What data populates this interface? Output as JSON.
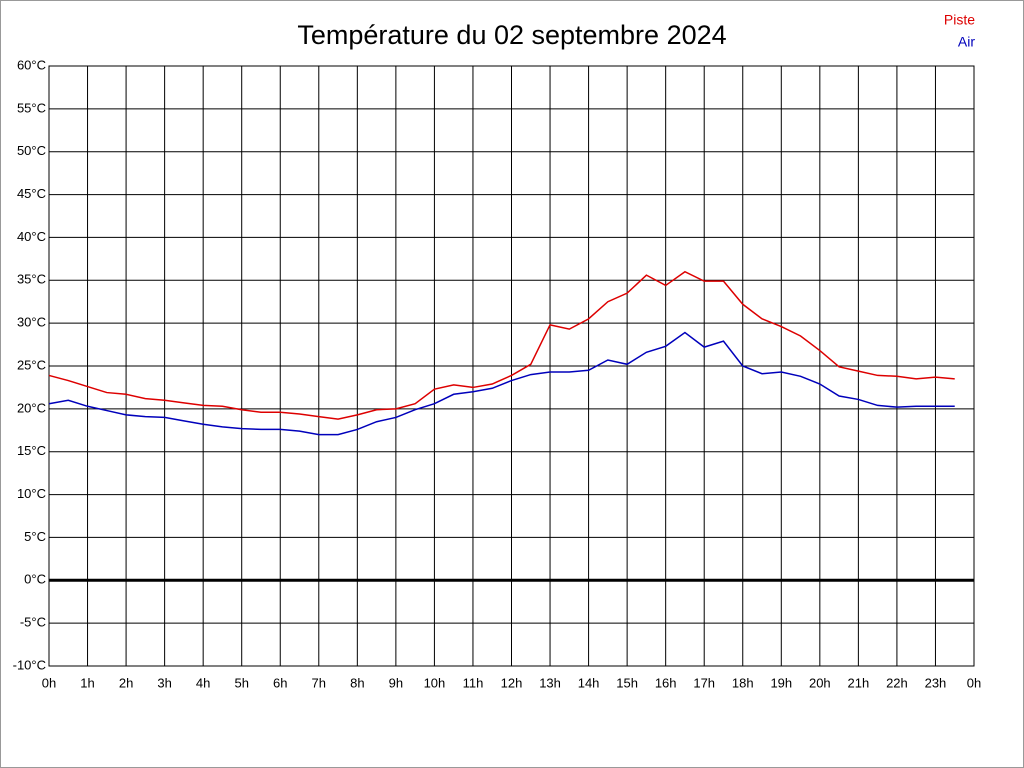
{
  "chart_data": {
    "type": "line",
    "title": "Température du 02 septembre 2024",
    "x": [
      0,
      0.5,
      1,
      1.5,
      2,
      2.5,
      3,
      3.5,
      4,
      4.5,
      5,
      5.5,
      6,
      6.5,
      7,
      7.5,
      8,
      8.5,
      9,
      9.5,
      10,
      10.5,
      11,
      11.5,
      12,
      12.5,
      13,
      13.5,
      14,
      14.5,
      15,
      15.5,
      16,
      16.5,
      17,
      17.5,
      18,
      18.5,
      19,
      19.5,
      20,
      20.5,
      21,
      21.5,
      22,
      22.5,
      23,
      23.5
    ],
    "series": [
      {
        "name": "Piste",
        "color": "#dd0000",
        "values": [
          23.9,
          23.3,
          22.6,
          21.9,
          21.7,
          21.2,
          21.0,
          20.7,
          20.4,
          20.3,
          19.9,
          19.6,
          19.6,
          19.4,
          19.1,
          18.8,
          19.3,
          19.9,
          20.0,
          20.6,
          22.3,
          22.8,
          22.5,
          22.9,
          23.9,
          25.2,
          29.8,
          29.3,
          30.5,
          32.5,
          33.5,
          35.6,
          34.4,
          36.0,
          34.9,
          34.9,
          32.2,
          30.5,
          29.6,
          28.5,
          26.8,
          24.9,
          24.4,
          23.9,
          23.8,
          23.5,
          23.7,
          23.5
        ]
      },
      {
        "name": "Air",
        "color": "#0000bb",
        "values": [
          20.6,
          21.0,
          20.3,
          19.8,
          19.3,
          19.1,
          19.0,
          18.6,
          18.2,
          17.9,
          17.7,
          17.6,
          17.6,
          17.4,
          17.0,
          17.0,
          17.6,
          18.5,
          19.0,
          19.9,
          20.6,
          21.7,
          22.0,
          22.4,
          23.3,
          24.0,
          24.3,
          24.3,
          24.5,
          25.7,
          25.2,
          26.6,
          27.3,
          28.9,
          27.2,
          27.9,
          25.0,
          24.1,
          24.3,
          23.8,
          22.9,
          21.5,
          21.1,
          20.4,
          20.2,
          20.3,
          20.3,
          20.3
        ]
      }
    ],
    "xlim": [
      0,
      24
    ],
    "xticks": [
      {
        "value": 0,
        "label": "0h"
      },
      {
        "value": 1,
        "label": "1h"
      },
      {
        "value": 2,
        "label": "2h"
      },
      {
        "value": 3,
        "label": "3h"
      },
      {
        "value": 4,
        "label": "4h"
      },
      {
        "value": 5,
        "label": "5h"
      },
      {
        "value": 6,
        "label": "6h"
      },
      {
        "value": 7,
        "label": "7h"
      },
      {
        "value": 8,
        "label": "8h"
      },
      {
        "value": 9,
        "label": "9h"
      },
      {
        "value": 10,
        "label": "10h"
      },
      {
        "value": 11,
        "label": "11h"
      },
      {
        "value": 12,
        "label": "12h"
      },
      {
        "value": 13,
        "label": "13h"
      },
      {
        "value": 14,
        "label": "14h"
      },
      {
        "value": 15,
        "label": "15h"
      },
      {
        "value": 16,
        "label": "16h"
      },
      {
        "value": 17,
        "label": "17h"
      },
      {
        "value": 18,
        "label": "18h"
      },
      {
        "value": 19,
        "label": "19h"
      },
      {
        "value": 20,
        "label": "20h"
      },
      {
        "value": 21,
        "label": "21h"
      },
      {
        "value": 22,
        "label": "22h"
      },
      {
        "value": 23,
        "label": "23h"
      },
      {
        "value": 24,
        "label": "0h"
      }
    ],
    "ylim": [
      -10,
      60
    ],
    "yticks": [
      {
        "value": -10,
        "label": "-10°C"
      },
      {
        "value": -5,
        "label": "-5°C"
      },
      {
        "value": 0,
        "label": "0°C"
      },
      {
        "value": 5,
        "label": "5°C"
      },
      {
        "value": 10,
        "label": "10°C"
      },
      {
        "value": 15,
        "label": "15°C"
      },
      {
        "value": 20,
        "label": "20°C"
      },
      {
        "value": 25,
        "label": "25°C"
      },
      {
        "value": 30,
        "label": "30°C"
      },
      {
        "value": 35,
        "label": "35°C"
      },
      {
        "value": 40,
        "label": "40°C"
      },
      {
        "value": 45,
        "label": "45°C"
      },
      {
        "value": 50,
        "label": "50°C"
      },
      {
        "value": 55,
        "label": "55°C"
      },
      {
        "value": 60,
        "label": "60°C"
      }
    ],
    "grid": true,
    "legend": "top-right"
  }
}
